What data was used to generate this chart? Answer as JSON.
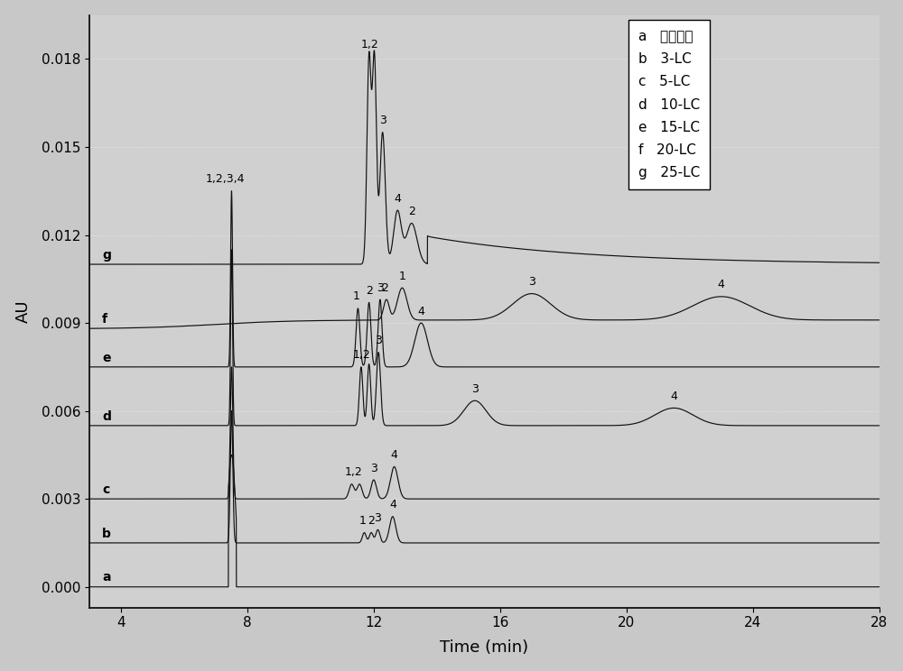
{
  "xlabel": "Time (min)",
  "ylabel": "AU",
  "xlim": [
    3,
    28
  ],
  "ylim": [
    -0.0007,
    0.0195
  ],
  "yticks": [
    0.0,
    0.003,
    0.006,
    0.009,
    0.012,
    0.015,
    0.018
  ],
  "xticks": [
    4,
    8,
    12,
    16,
    20,
    24,
    28
  ],
  "offsets": [
    0.0,
    0.0015,
    0.003,
    0.0055,
    0.0075,
    0.0088,
    0.011
  ],
  "curve_labels": [
    "a",
    "b",
    "c",
    "d",
    "e",
    "f",
    "g"
  ],
  "legend_lines": [
    "a   裸毛细管",
    "b   3-LC",
    "c   5-LC",
    "d   10-LC",
    "e   15-LC",
    "f   20-LC",
    "g   25-LC"
  ],
  "line_color": "#111111",
  "bg_color": "#d8d8d8",
  "figsize": [
    10.0,
    7.44
  ],
  "dpi": 100
}
